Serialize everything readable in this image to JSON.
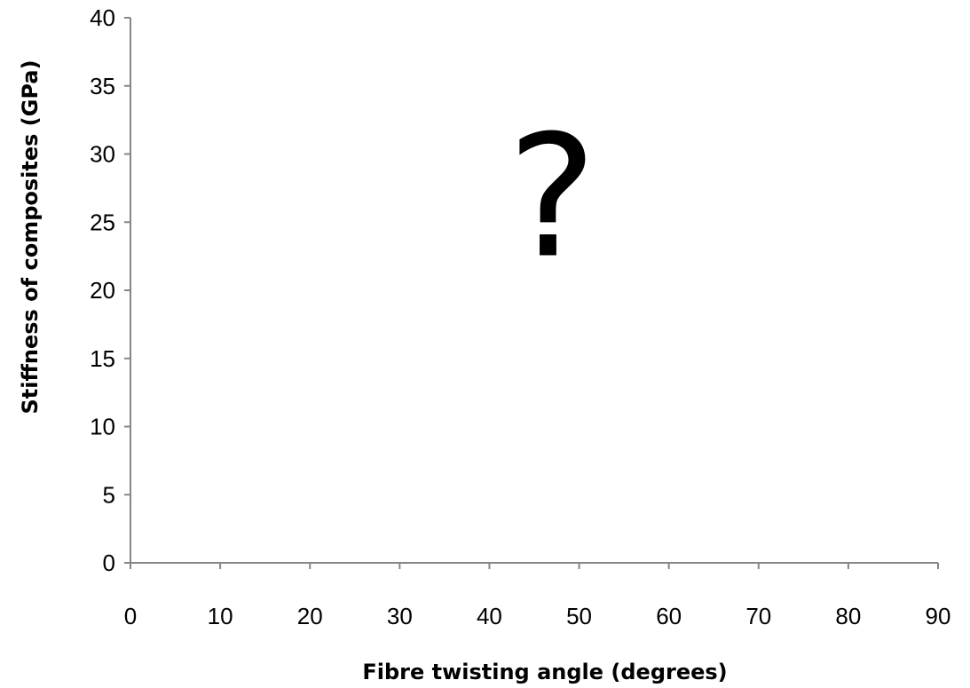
{
  "chart_data": {
    "type": "scatter",
    "title": "",
    "xlabel": "Fibre twisting angle (degrees)",
    "ylabel": "Stiffness of composites (GPa)",
    "xlim": [
      0,
      90
    ],
    "ylim": [
      0,
      40
    ],
    "xticks": [
      "0",
      "10",
      "20",
      "30",
      "40",
      "50",
      "60",
      "70",
      "80",
      "90"
    ],
    "yticks": [
      "0",
      "5",
      "10",
      "15",
      "20",
      "25",
      "30",
      "35",
      "40"
    ],
    "grid": false,
    "legend": "none",
    "series": [],
    "annotations": [
      {
        "text": "?",
        "x": 47,
        "y": 27
      }
    ],
    "colors": {
      "axis": "#868686",
      "text": "#000000"
    }
  }
}
